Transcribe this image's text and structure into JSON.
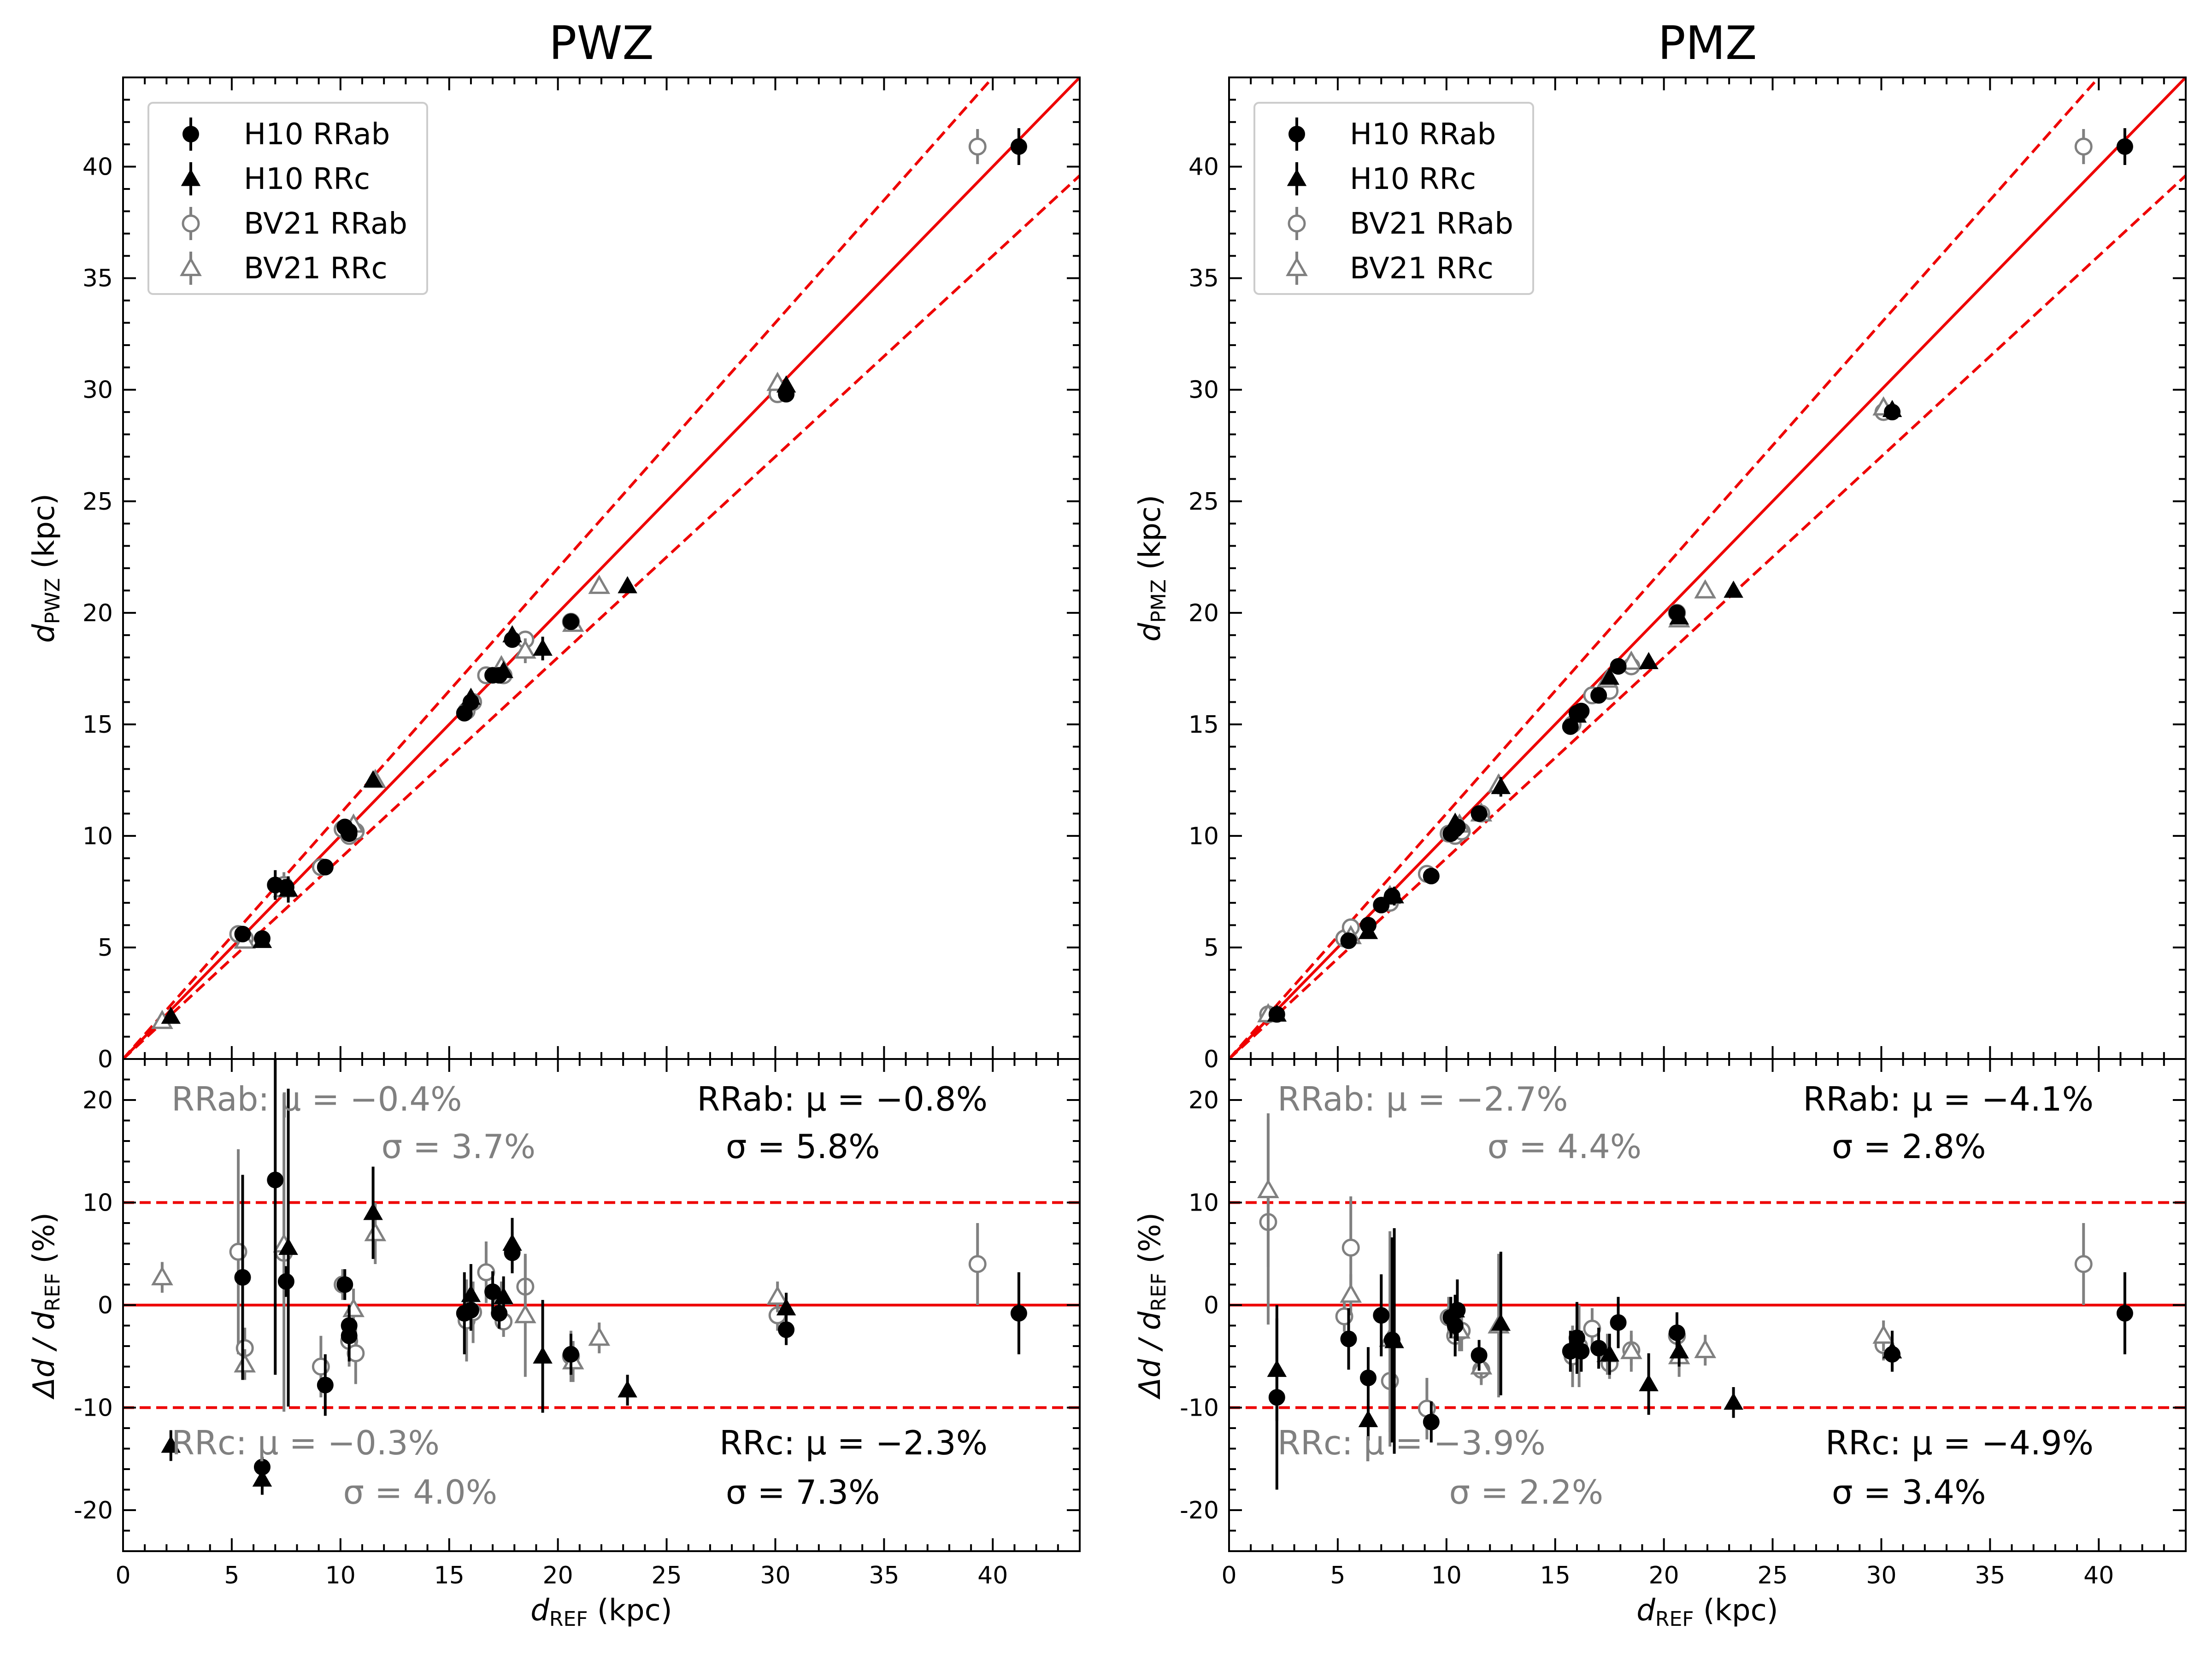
{
  "chart_data": [
    {
      "type": "scatter",
      "title": "PWZ",
      "ylabel": {
        "main": "d",
        "sub": "PWZ",
        "unit": " (kpc)"
      },
      "xlabel": {
        "main": "d",
        "sub": "REF",
        "unit": " (kpc)"
      },
      "resid_ylabel": {
        "delta": "Δd / d",
        "sub": "REF",
        "unit": " (%)"
      },
      "xlim": [
        0,
        44
      ],
      "ylim": [
        0,
        44
      ],
      "resid_ylim": [
        -24,
        24
      ],
      "x_ticks": [
        "0",
        "5",
        "10",
        "15",
        "20",
        "25",
        "30",
        "35",
        "40"
      ],
      "y_ticks": [
        "0",
        "5",
        "10",
        "15",
        "20",
        "25",
        "30",
        "35",
        "40"
      ],
      "resid_ticks": [
        "-20",
        "-10",
        "0",
        "10",
        "20"
      ],
      "lines": {
        "slope": 1.0,
        "upper": 1.1,
        "lower": 0.9,
        "resid_band": 10
      },
      "legend": {
        "position": "top-left",
        "entries": [
          "H10 RRab",
          "H10 RRc",
          "BV21 RRab",
          "BV21 RRc"
        ]
      },
      "stats": {
        "bv21_rrab": [
          "RRab: μ = −0.4%",
          "σ = 3.7%"
        ],
        "h10_rrab": [
          "RRab: μ = −0.8%",
          "σ = 5.8%"
        ],
        "bv21_rrc": [
          "RRc: μ = −0.3%",
          "σ = 4.0%"
        ],
        "h10_rrc": [
          "RRc: μ = −2.3%",
          "σ = 7.3%"
        ]
      },
      "series": [
        {
          "name": "BV21 RRab",
          "marker": "circle-open",
          "color": "#808080",
          "x": [
            5.3,
            5.6,
            7.4,
            9.1,
            10.1,
            10.4,
            10.7,
            15.8,
            16.1,
            16.7,
            17.5,
            18.5,
            20.6,
            30.1,
            39.3
          ],
          "y": [
            5.6,
            5.4,
            7.8,
            8.6,
            10.3,
            10.0,
            10.2,
            15.6,
            16.0,
            17.2,
            17.2,
            18.8,
            19.6,
            29.8,
            40.9
          ],
          "resid": [
            5.2,
            -4.2,
            5.1,
            -6.0,
            2.0,
            -3.5,
            -4.7,
            -1.5,
            -0.7,
            3.2,
            -1.6,
            1.8,
            -5.0,
            -1.0,
            4.0
          ],
          "err": [
            10.0,
            2.0,
            15.5,
            3.0,
            1.5,
            2.5,
            3.0,
            4.0,
            3.0,
            3.0,
            1.5,
            3.0,
            2.5,
            1.5,
            4.0
          ]
        },
        {
          "name": "BV21 RRc",
          "marker": "triangle-open",
          "color": "#808080",
          "x": [
            1.8,
            5.6,
            7.4,
            10.6,
            11.6,
            17.4,
            18.5,
            20.7,
            21.9,
            30.1
          ],
          "y": [
            1.7,
            5.3,
            7.6,
            10.5,
            12.5,
            17.6,
            18.3,
            19.5,
            21.2,
            30.3
          ],
          "resid": [
            2.7,
            -5.8,
            5.9,
            -0.4,
            7.0,
            0.8,
            -1.0,
            -5.5,
            -3.2,
            0.8
          ],
          "err": [
            1.5,
            1.5,
            6.0,
            2.0,
            3.0,
            1.5,
            6.0,
            2.0,
            1.5,
            1.5
          ]
        },
        {
          "name": "H10 RRab",
          "marker": "circle",
          "color": "#000000",
          "x": [
            5.5,
            6.4,
            7.0,
            7.5,
            9.3,
            10.2,
            10.4,
            10.4,
            15.7,
            16.0,
            17.0,
            17.3,
            17.9,
            20.6,
            30.5,
            41.2
          ],
          "y": [
            5.6,
            5.4,
            7.8,
            7.7,
            8.6,
            10.4,
            10.1,
            10.2,
            15.5,
            16.0,
            17.2,
            17.2,
            18.8,
            19.6,
            29.8,
            40.9
          ],
          "resid": [
            2.7,
            -15.8,
            12.2,
            2.3,
            -7.8,
            2.0,
            -2.0,
            -3.0,
            -0.8,
            -0.5,
            1.3,
            -0.8,
            5.1,
            -4.8,
            -2.4,
            -0.8
          ],
          "err": [
            10.0,
            1.0,
            19.0,
            1.5,
            3.0,
            1.5,
            2.0,
            2.5,
            4.0,
            2.0,
            2.0,
            1.5,
            2.0,
            2.0,
            1.5,
            4.0
          ]
        },
        {
          "name": "H10 RRc",
          "marker": "triangle",
          "color": "#000000",
          "x": [
            2.2,
            6.4,
            7.6,
            11.5,
            16.0,
            17.5,
            17.9,
            19.3,
            23.2,
            30.5
          ],
          "y": [
            1.9,
            5.3,
            7.6,
            12.5,
            16.2,
            17.4,
            19.0,
            18.4,
            21.2,
            30.2
          ],
          "resid": [
            -13.7,
            -17.0,
            5.6,
            9.0,
            1.0,
            0.8,
            6.0,
            -5.0,
            -8.3,
            -0.3
          ],
          "err": [
            1.5,
            1.5,
            15.5,
            4.5,
            3.0,
            2.0,
            2.5,
            5.5,
            1.5,
            1.5
          ]
        }
      ]
    },
    {
      "type": "scatter",
      "title": "PMZ",
      "ylabel": {
        "main": "d",
        "sub": "PMZ",
        "unit": " (kpc)"
      },
      "xlabel": {
        "main": "d",
        "sub": "REF",
        "unit": " (kpc)"
      },
      "resid_ylabel": {
        "delta": "Δd / d",
        "sub": "REF",
        "unit": " (%)"
      },
      "xlim": [
        0,
        44
      ],
      "ylim": [
        0,
        44
      ],
      "resid_ylim": [
        -24,
        24
      ],
      "x_ticks": [
        "0",
        "5",
        "10",
        "15",
        "20",
        "25",
        "30",
        "35",
        "40"
      ],
      "y_ticks": [
        "0",
        "5",
        "10",
        "15",
        "20",
        "25",
        "30",
        "35",
        "40"
      ],
      "resid_ticks": [
        "-20",
        "-10",
        "0",
        "10",
        "20"
      ],
      "lines": {
        "slope": 1.0,
        "upper": 1.1,
        "lower": 0.9,
        "resid_band": 10
      },
      "legend": {
        "position": "top-left",
        "entries": [
          "H10 RRab",
          "H10 RRc",
          "BV21 RRab",
          "BV21 RRc"
        ]
      },
      "stats": {
        "bv21_rrab": [
          "RRab: μ = −2.7%",
          "σ = 4.4%"
        ],
        "h10_rrab": [
          "RRab: μ = −4.1%",
          "σ = 2.8%"
        ],
        "bv21_rrc": [
          "RRc: μ = −3.9%",
          "σ = 2.2%"
        ],
        "h10_rrc": [
          "RRc: μ = −4.9%",
          "σ = 3.4%"
        ]
      },
      "series": [
        {
          "name": "BV21 RRab",
          "marker": "circle-open",
          "color": "#808080",
          "x": [
            1.8,
            5.3,
            5.6,
            7.4,
            9.1,
            10.1,
            10.4,
            10.7,
            11.6,
            15.8,
            16.1,
            16.7,
            17.5,
            18.5,
            20.6,
            30.1,
            39.3
          ],
          "y": [
            2.0,
            5.4,
            5.9,
            7.0,
            8.3,
            10.1,
            10.0,
            10.2,
            11.0,
            15.0,
            15.5,
            16.3,
            16.5,
            17.6,
            20.0,
            29.0,
            40.9
          ],
          "resid": [
            8.1,
            -1.1,
            5.6,
            -7.4,
            -10.1,
            -1.2,
            -3.0,
            -2.5,
            -6.3,
            -5.0,
            -4.0,
            -2.3,
            -5.7,
            -4.4,
            -3.0,
            -3.9,
            4.0
          ],
          "err": [
            10.0,
            1.5,
            5.0,
            5.0,
            3.0,
            2.0,
            2.0,
            2.0,
            1.5,
            3.0,
            4.0,
            2.0,
            1.5,
            1.5,
            2.0,
            1.5,
            4.0
          ]
        },
        {
          "name": "BV21 RRc",
          "marker": "triangle-open",
          "color": "#808080",
          "x": [
            1.8,
            5.6,
            7.4,
            10.6,
            11.6,
            12.4,
            17.4,
            18.5,
            20.7,
            21.9,
            30.1
          ],
          "y": [
            2.0,
            5.5,
            7.3,
            10.5,
            11.0,
            12.3,
            17.0,
            17.8,
            19.7,
            21.0,
            29.2
          ],
          "resid": [
            11.2,
            1.0,
            -3.3,
            -2.5,
            -6.0,
            -2.0,
            -4.8,
            -4.5,
            -5.0,
            -4.4,
            -3.0
          ],
          "err": [
            7.5,
            2.0,
            10.5,
            2.0,
            1.5,
            7.0,
            2.0,
            2.0,
            2.0,
            1.5,
            1.5
          ]
        },
        {
          "name": "H10 RRab",
          "marker": "circle",
          "color": "#000000",
          "x": [
            2.2,
            5.5,
            6.4,
            7.0,
            7.5,
            9.3,
            10.2,
            10.4,
            10.5,
            11.5,
            15.7,
            16.0,
            16.2,
            17.0,
            17.9,
            20.6,
            30.5,
            41.2
          ],
          "y": [
            2.0,
            5.3,
            6.0,
            6.9,
            7.3,
            8.2,
            10.1,
            10.3,
            10.4,
            11.0,
            14.9,
            15.5,
            15.6,
            16.3,
            17.6,
            20.0,
            29.0,
            40.9
          ],
          "resid": [
            -9.0,
            -3.3,
            -7.1,
            -1.0,
            -3.4,
            -11.4,
            -1.2,
            -2.0,
            -0.5,
            -4.9,
            -4.5,
            -3.2,
            -4.5,
            -4.2,
            -1.7,
            -2.7,
            -4.8,
            -0.8
          ],
          "err": [
            9.0,
            3.0,
            3.0,
            4.0,
            10.0,
            2.0,
            2.0,
            3.0,
            3.0,
            1.5,
            2.0,
            3.5,
            2.0,
            2.0,
            2.5,
            2.0,
            1.5,
            4.0
          ]
        },
        {
          "name": "H10 RRc",
          "marker": "triangle",
          "color": "#000000",
          "x": [
            2.2,
            6.4,
            7.6,
            10.4,
            12.5,
            16.0,
            17.5,
            19.3,
            20.7,
            23.2,
            30.5
          ],
          "y": [
            2.0,
            5.7,
            7.3,
            10.6,
            12.2,
            15.4,
            17.1,
            17.8,
            19.8,
            21.0,
            29.1
          ],
          "resid": [
            -6.3,
            -11.2,
            -3.5,
            -0.5,
            -1.8,
            -4.0,
            -4.8,
            -7.7,
            -4.5,
            -9.5,
            -4.5
          ],
          "err": [
            5.0,
            2.0,
            11.0,
            1.5,
            7.0,
            2.0,
            2.0,
            3.0,
            1.5,
            1.5,
            2.0
          ]
        }
      ]
    }
  ]
}
